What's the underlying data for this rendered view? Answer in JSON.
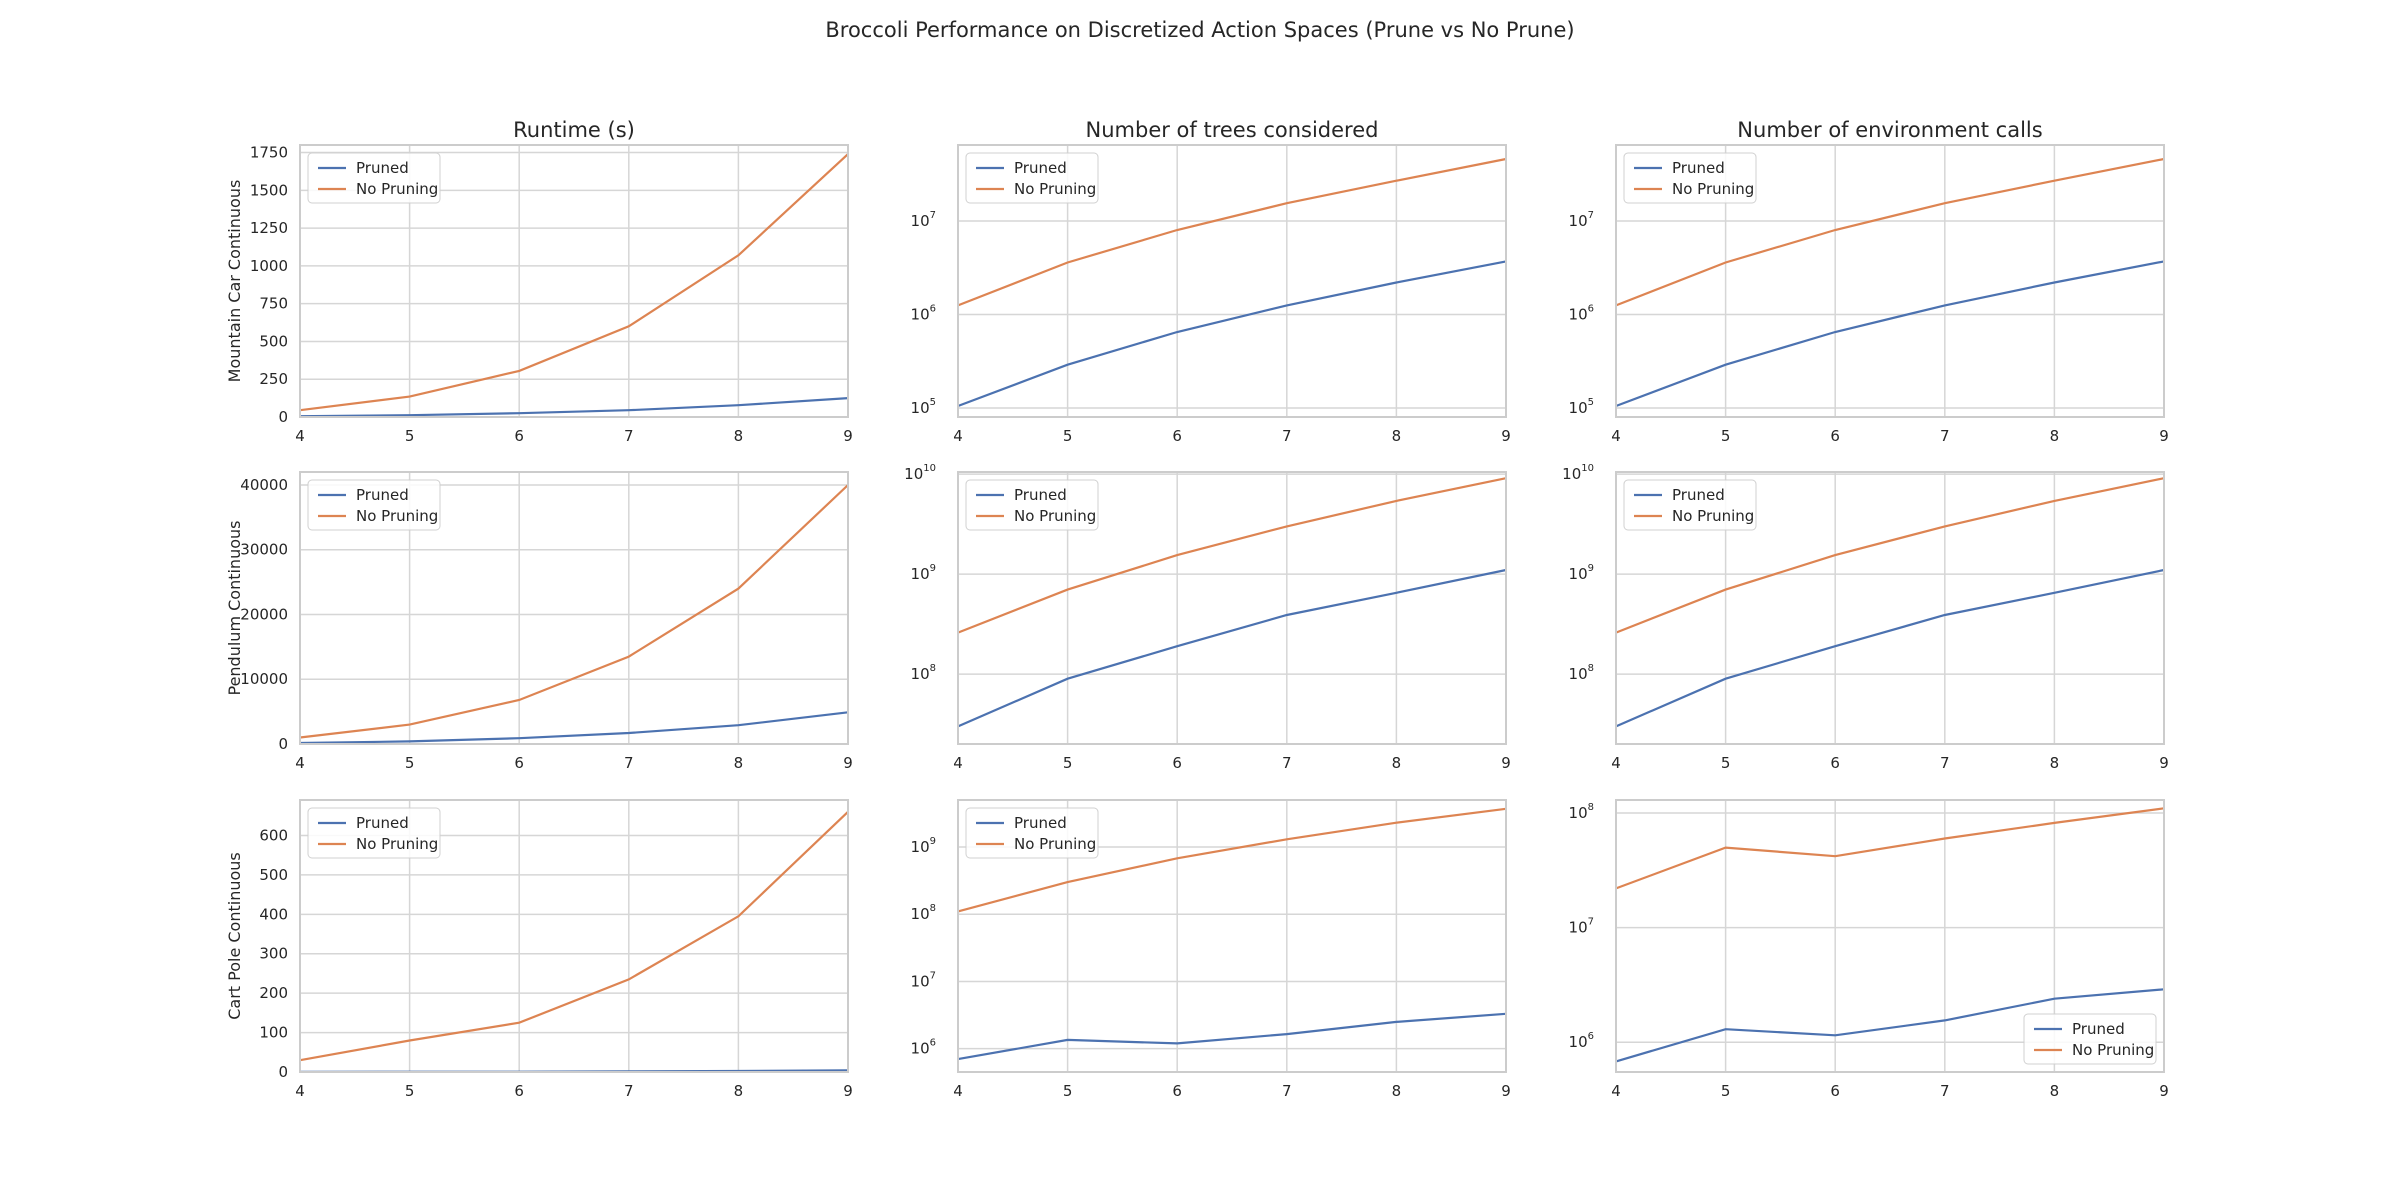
{
  "figure": {
    "title": "Broccoli Performance on Discretized Action Spaces (Prune vs No Prune)"
  },
  "colors": {
    "pruned": "#4c72b0",
    "no_pruning": "#dd8452",
    "grid": "#d6d6d6",
    "axes_edge": "#cccccc"
  },
  "chart_data": [
    {
      "type": "line",
      "row": 0,
      "col": 0,
      "title": "Runtime (s)",
      "ylabel": "Mountain Car Continuous",
      "yscale": "linear",
      "ylim": [
        0,
        1800
      ],
      "yticks": [
        0,
        250,
        500,
        750,
        1000,
        1250,
        1500,
        1750
      ],
      "x": [
        4,
        5,
        6,
        7,
        8,
        9
      ],
      "xlim": [
        4,
        9
      ],
      "legend": "top-left",
      "grid": true,
      "series": [
        {
          "name": "Pruned",
          "values": [
            5,
            12,
            25,
            45,
            78,
            125
          ]
        },
        {
          "name": "No Pruning",
          "values": [
            45,
            135,
            305,
            600,
            1070,
            1740
          ]
        }
      ]
    },
    {
      "type": "line",
      "row": 0,
      "col": 1,
      "title": "Number of trees considered",
      "ylabel": "",
      "yscale": "log",
      "ylim": [
        80000,
        65000000
      ],
      "yticks": [
        100000,
        1000000,
        10000000
      ],
      "x": [
        4,
        5,
        6,
        7,
        8,
        9
      ],
      "xlim": [
        4,
        9
      ],
      "legend": "top-left",
      "grid": true,
      "series": [
        {
          "name": "Pruned",
          "values": [
            105000,
            290000,
            650000,
            1250000,
            2200000,
            3700000
          ]
        },
        {
          "name": "No Pruning",
          "values": [
            1250000,
            3600000,
            8000000,
            15500000,
            27000000,
            46000000
          ]
        }
      ]
    },
    {
      "type": "line",
      "row": 0,
      "col": 2,
      "title": "Number of environment calls",
      "ylabel": "",
      "yscale": "log",
      "ylim": [
        80000,
        65000000
      ],
      "yticks": [
        100000,
        1000000,
        10000000
      ],
      "x": [
        4,
        5,
        6,
        7,
        8,
        9
      ],
      "xlim": [
        4,
        9
      ],
      "legend": "top-left",
      "grid": true,
      "series": [
        {
          "name": "Pruned",
          "values": [
            105000,
            290000,
            650000,
            1250000,
            2200000,
            3700000
          ]
        },
        {
          "name": "No Pruning",
          "values": [
            1250000,
            3600000,
            8000000,
            15500000,
            27000000,
            46000000
          ]
        }
      ]
    },
    {
      "type": "line",
      "row": 1,
      "col": 0,
      "title": "",
      "ylabel": "Pendulum Continuous",
      "yscale": "linear",
      "ylim": [
        0,
        42000
      ],
      "yticks": [
        0,
        10000,
        20000,
        30000,
        40000
      ],
      "x": [
        4,
        5,
        6,
        7,
        8,
        9
      ],
      "xlim": [
        4,
        9
      ],
      "legend": "top-left",
      "grid": true,
      "series": [
        {
          "name": "Pruned",
          "values": [
            150,
            400,
            900,
            1700,
            2900,
            4900
          ]
        },
        {
          "name": "No Pruning",
          "values": [
            1000,
            3000,
            6800,
            13500,
            24000,
            40000
          ]
        }
      ]
    },
    {
      "type": "line",
      "row": 1,
      "col": 1,
      "title": "",
      "ylabel": "",
      "yscale": "log",
      "ylim": [
        20000000,
        10500000000
      ],
      "yticks": [
        100000000,
        1000000000,
        10000000000
      ],
      "x": [
        4,
        5,
        6,
        7,
        8,
        9
      ],
      "xlim": [
        4,
        9
      ],
      "legend": "top-left",
      "grid": true,
      "series": [
        {
          "name": "Pruned",
          "values": [
            30000000,
            90000000,
            190000000,
            390000000,
            650000000,
            1100000000
          ]
        },
        {
          "name": "No Pruning",
          "values": [
            260000000,
            700000000,
            1550000000,
            3000000000,
            5400000000,
            9100000000
          ]
        }
      ]
    },
    {
      "type": "line",
      "row": 1,
      "col": 2,
      "title": "",
      "ylabel": "",
      "yscale": "log",
      "ylim": [
        20000000,
        10500000000
      ],
      "yticks": [
        100000000,
        1000000000,
        10000000000
      ],
      "x": [
        4,
        5,
        6,
        7,
        8,
        9
      ],
      "xlim": [
        4,
        9
      ],
      "legend": "top-left",
      "grid": true,
      "series": [
        {
          "name": "Pruned",
          "values": [
            30000000,
            90000000,
            190000000,
            390000000,
            650000000,
            1100000000
          ]
        },
        {
          "name": "No Pruning",
          "values": [
            260000000,
            700000000,
            1550000000,
            3000000000,
            5400000000,
            9100000000
          ]
        }
      ]
    },
    {
      "type": "line",
      "row": 2,
      "col": 0,
      "title": "",
      "ylabel": "Cart Pole Continuous",
      "yscale": "linear",
      "ylim": [
        0,
        690
      ],
      "yticks": [
        0,
        100,
        200,
        300,
        400,
        500,
        600
      ],
      "x": [
        4,
        5,
        6,
        7,
        8,
        9
      ],
      "xlim": [
        4,
        9
      ],
      "legend": "top-left",
      "grid": true,
      "series": [
        {
          "name": "Pruned",
          "values": [
            0.3,
            0.7,
            0.8,
            1.5,
            2.5,
            4
          ]
        },
        {
          "name": "No Pruning",
          "values": [
            30,
            80,
            125,
            235,
            395,
            660
          ]
        }
      ]
    },
    {
      "type": "line",
      "row": 2,
      "col": 1,
      "title": "",
      "ylabel": "",
      "yscale": "log",
      "ylim": [
        450000,
        5000000000
      ],
      "yticks": [
        1000000,
        10000000,
        100000000,
        1000000000
      ],
      "x": [
        4,
        5,
        6,
        7,
        8,
        9
      ],
      "xlim": [
        4,
        9
      ],
      "legend": "top-left",
      "grid": true,
      "series": [
        {
          "name": "Pruned",
          "values": [
            700000,
            1350000,
            1200000,
            1650000,
            2500000,
            3300000
          ]
        },
        {
          "name": "No Pruning",
          "values": [
            110000000,
            300000000,
            680000000,
            1300000000,
            2300000000,
            3700000000
          ]
        }
      ]
    },
    {
      "type": "line",
      "row": 2,
      "col": 2,
      "title": "",
      "ylabel": "",
      "yscale": "log",
      "ylim": [
        550000,
        130000000
      ],
      "yticks": [
        1000000,
        10000000,
        100000000
      ],
      "x": [
        4,
        5,
        6,
        7,
        8,
        9
      ],
      "xlim": [
        4,
        9
      ],
      "legend": "bottom-right",
      "grid": true,
      "series": [
        {
          "name": "Pruned",
          "values": [
            680000,
            1300000,
            1150000,
            1550000,
            2400000,
            2900000
          ]
        },
        {
          "name": "No Pruning",
          "values": [
            22000000,
            50000000,
            42000000,
            60000000,
            82000000,
            110000000
          ]
        }
      ]
    }
  ]
}
